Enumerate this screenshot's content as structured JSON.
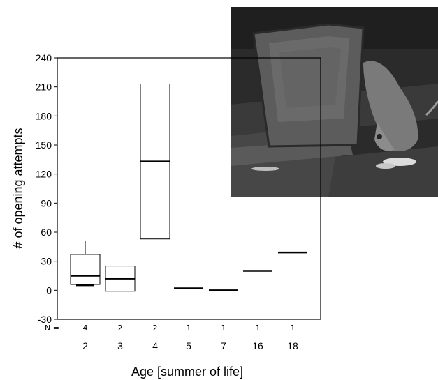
{
  "chart_data": {
    "type": "boxplot",
    "xlabel": "Age [summer of life]",
    "ylabel": "# of opening attempts",
    "ylim": [
      -30,
      240
    ],
    "yticks": [
      240,
      210,
      180,
      150,
      120,
      90,
      60,
      30,
      0,
      -30
    ],
    "n_label": "N =",
    "categories": [
      "2",
      "3",
      "4",
      "5",
      "7",
      "16",
      "18"
    ],
    "n": [
      "4",
      "2",
      "2",
      "1",
      "1",
      "1",
      "1"
    ],
    "boxes": [
      {
        "q1": 6,
        "median": 15,
        "q3": 37,
        "whisker_low": 5,
        "whisker_high": 51
      },
      {
        "q1": -1,
        "median": 12,
        "q3": 25,
        "whisker_low": -1,
        "whisker_high": 25
      },
      {
        "q1": 53,
        "median": 133,
        "q3": 213,
        "whisker_low": 53,
        "whisker_high": 213
      },
      {
        "q1": 2,
        "median": 2,
        "q3": 2,
        "whisker_low": 2,
        "whisker_high": 2
      },
      {
        "q1": 0,
        "median": 0,
        "q3": 0,
        "whisker_low": 0,
        "whisker_high": 0
      },
      {
        "q1": 20,
        "median": 20,
        "q3": 20,
        "whisker_low": 20,
        "whisker_high": 20
      },
      {
        "q1": 39,
        "median": 39,
        "q3": 39,
        "whisker_low": 39,
        "whisker_high": 39
      }
    ]
  },
  "inset_photo": {
    "subject": "bird-at-open-trash-bin-icon",
    "colors": {
      "sky": "#2a2a2a",
      "bin": "#4f4f4f",
      "lid": "#5e5e5e",
      "bird": "#777777",
      "food": "#dcdcdc"
    }
  }
}
